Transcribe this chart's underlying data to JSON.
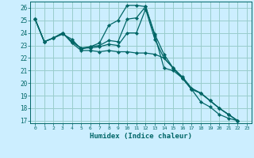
{
  "xlabel": "Humidex (Indice chaleur)",
  "bg_color": "#cceeff",
  "grid_color": "#99cccc",
  "line_color": "#006666",
  "xlim": [
    -0.5,
    23.5
  ],
  "ylim": [
    16.8,
    26.5
  ],
  "yticks": [
    17,
    18,
    19,
    20,
    21,
    22,
    23,
    24,
    25,
    26
  ],
  "xticks": [
    0,
    1,
    2,
    3,
    4,
    5,
    6,
    7,
    8,
    9,
    10,
    11,
    12,
    13,
    14,
    15,
    16,
    17,
    18,
    19,
    20,
    21,
    22,
    23
  ],
  "series": [
    [
      25.1,
      23.3,
      23.6,
      23.9,
      23.5,
      22.7,
      22.9,
      23.2,
      24.6,
      25.0,
      26.2,
      26.2,
      26.1,
      23.8,
      21.2,
      21.0,
      20.4,
      19.5,
      18.5,
      18.1,
      17.5,
      17.2,
      17.0
    ],
    [
      25.1,
      23.3,
      23.6,
      24.0,
      23.3,
      22.8,
      22.9,
      23.0,
      23.4,
      23.3,
      25.1,
      25.2,
      26.1,
      23.9,
      22.3,
      21.2,
      20.5,
      19.6,
      19.2,
      18.6,
      18.0,
      17.5,
      17.0
    ],
    [
      25.1,
      23.3,
      23.6,
      24.0,
      23.3,
      22.8,
      22.8,
      22.9,
      23.1,
      23.0,
      24.0,
      24.0,
      25.9,
      23.5,
      22.0,
      21.2,
      20.4,
      19.5,
      19.2,
      18.6,
      18.0,
      17.5,
      17.0
    ],
    [
      25.1,
      23.3,
      23.6,
      24.0,
      23.2,
      22.6,
      22.6,
      22.5,
      22.6,
      22.5,
      22.5,
      22.4,
      22.4,
      22.3,
      22.0,
      21.2,
      20.4,
      19.5,
      19.2,
      18.6,
      18.0,
      17.5,
      17.0
    ]
  ],
  "x_values": [
    0,
    1,
    2,
    3,
    4,
    5,
    6,
    7,
    8,
    9,
    10,
    11,
    12,
    13,
    14,
    15,
    16,
    17,
    18,
    19,
    20,
    21,
    22
  ]
}
